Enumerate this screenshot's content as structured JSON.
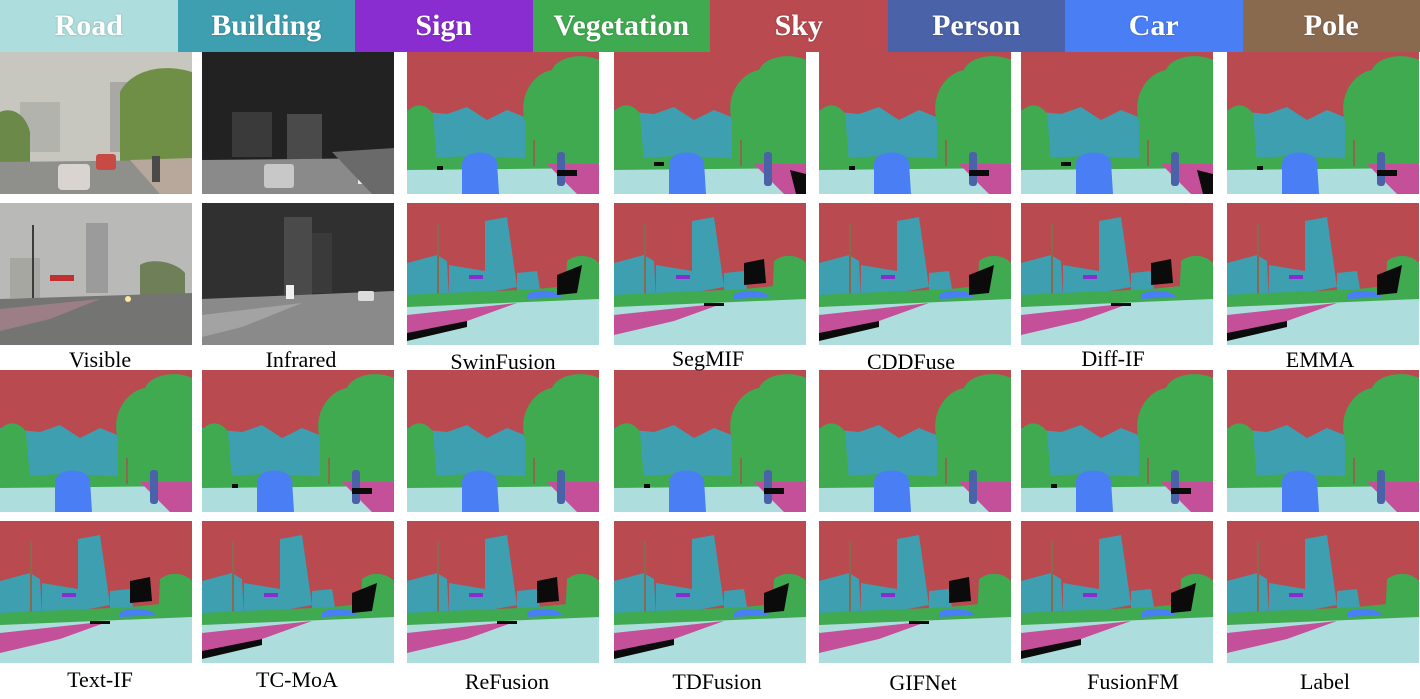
{
  "legend": [
    {
      "label": "Road",
      "color": "#aedddd"
    },
    {
      "label": "Building",
      "color": "#3d9fb0"
    },
    {
      "label": "Sign",
      "color": "#8a2dd0"
    },
    {
      "label": "Vegetation",
      "color": "#3faa50"
    },
    {
      "label": "Sky",
      "color": "#b84a50"
    },
    {
      "label": "Person",
      "color": "#4a62a8"
    },
    {
      "label": "Car",
      "color": "#4a7ef5"
    },
    {
      "label": "Pole",
      "color": "#8a6a4f"
    }
  ],
  "captions_top": [
    "Visible",
    "Infrared",
    "SwinFusion",
    "SegMIF",
    "CDDFuse",
    "Diff-IF",
    "EMMA"
  ],
  "captions_bottom": [
    "Text-IF",
    "TC-MoA",
    "ReFusion",
    "TDFusion",
    "GIFNet",
    "FusionFM",
    "Label"
  ]
}
